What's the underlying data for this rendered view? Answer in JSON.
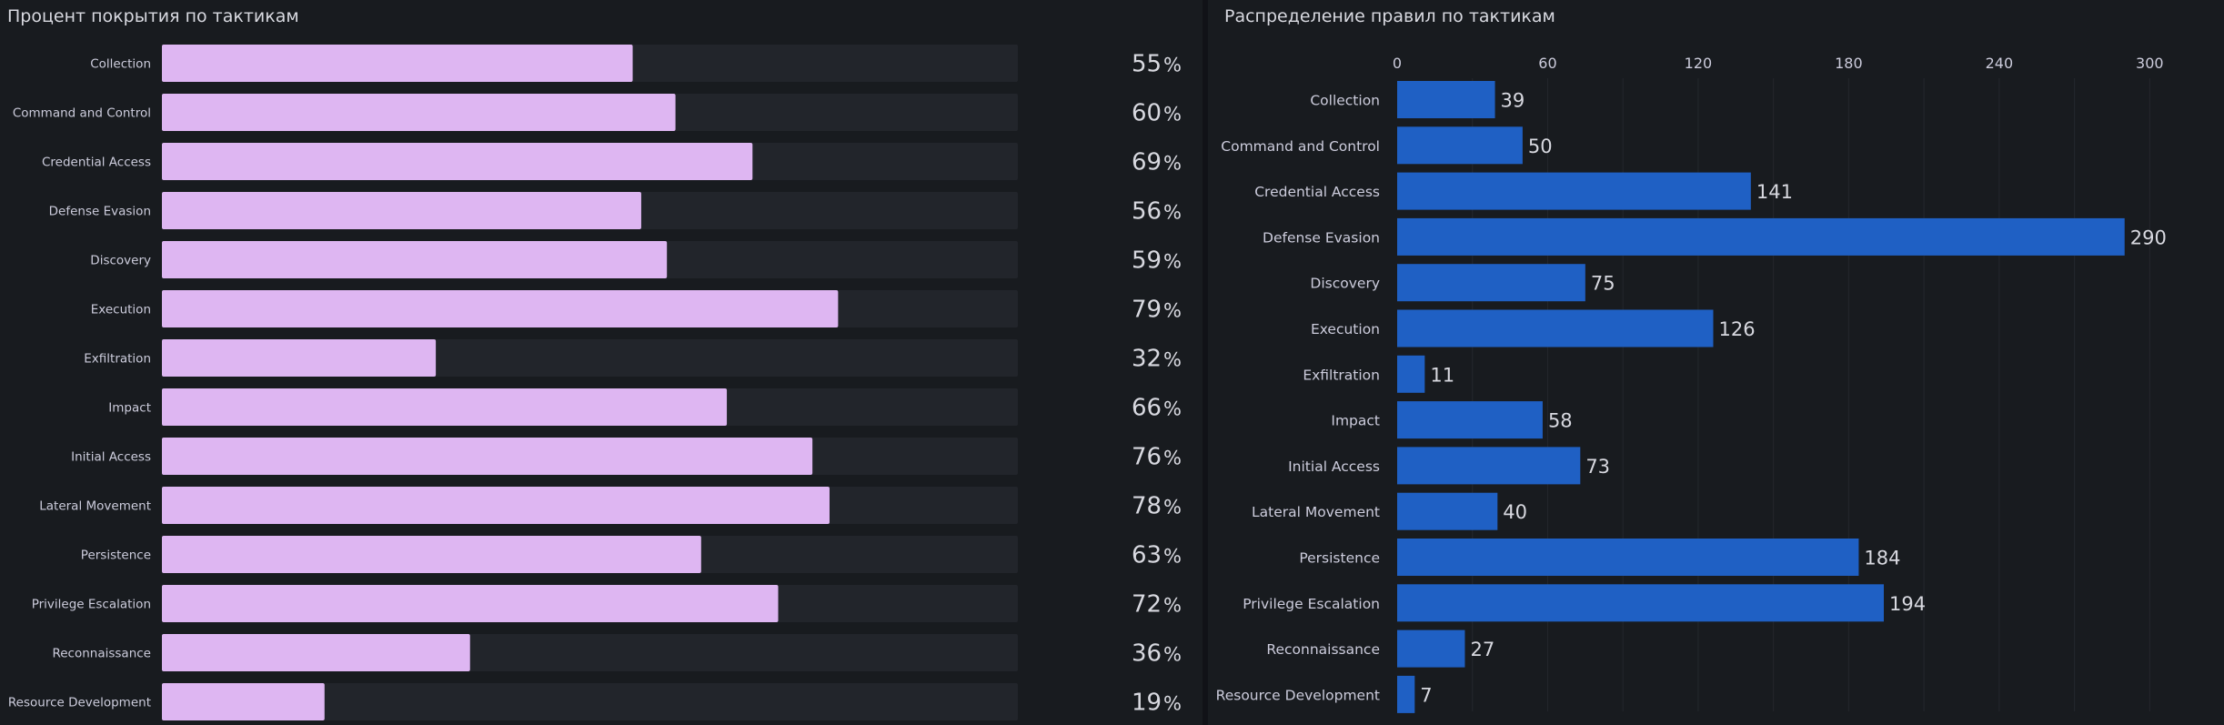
{
  "chart_data": [
    {
      "type": "bar",
      "orientation": "horizontal",
      "title": "Процент покрытия по тактикам",
      "categories": [
        "Collection",
        "Command and Control",
        "Credential Access",
        "Defense Evasion",
        "Discovery",
        "Execution",
        "Exfiltration",
        "Impact",
        "Initial Access",
        "Lateral Movement",
        "Persistence",
        "Privilege Escalation",
        "Reconnaissance",
        "Resource Development"
      ],
      "values": [
        55,
        60,
        69,
        56,
        59,
        79,
        32,
        66,
        76,
        78,
        63,
        72,
        36,
        19
      ],
      "unit": "%",
      "xlim": [
        0,
        100
      ],
      "bar_color": "#deb6f2",
      "track_color": "#22252b"
    },
    {
      "type": "bar",
      "orientation": "horizontal",
      "title": "Распределение правил по тактикам",
      "categories": [
        "Collection",
        "Command and Control",
        "Credential Access",
        "Defense Evasion",
        "Discovery",
        "Execution",
        "Exfiltration",
        "Impact",
        "Initial Access",
        "Lateral Movement",
        "Persistence",
        "Privilege Escalation",
        "Reconnaissance",
        "Resource Development"
      ],
      "values": [
        39,
        50,
        141,
        290,
        75,
        126,
        11,
        58,
        73,
        40,
        184,
        194,
        27,
        7
      ],
      "xticks": [
        0,
        60,
        120,
        180,
        240,
        300
      ],
      "xlim": [
        0,
        322
      ],
      "grid": true,
      "bar_color": "#1f60c4"
    }
  ]
}
